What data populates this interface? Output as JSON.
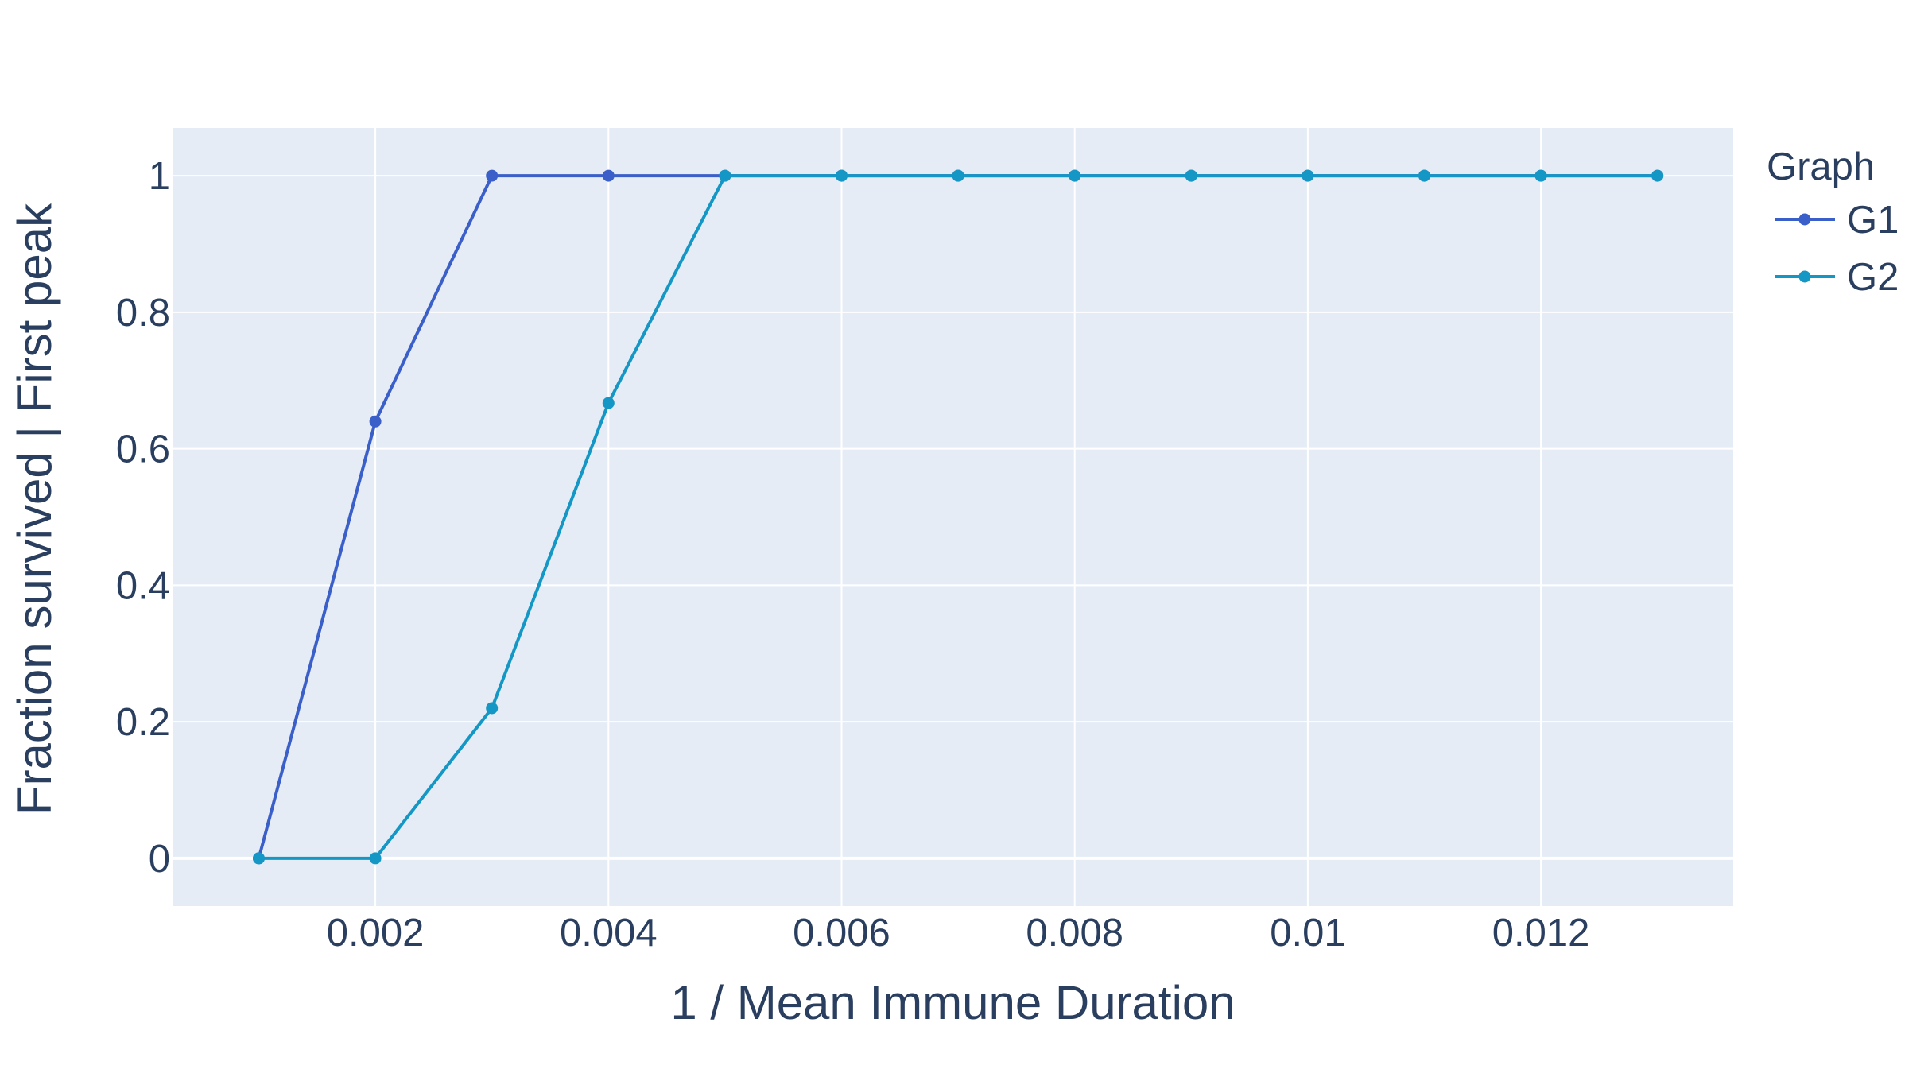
{
  "chart_data": {
    "type": "line",
    "xlabel": "1 / Mean Immune Duration",
    "ylabel": "Fraction survived  | First peak",
    "xlim": [
      0.00026,
      0.01365
    ],
    "ylim": [
      -0.07,
      1.07
    ],
    "x_ticks": [
      0.002,
      0.004,
      0.006,
      0.008,
      0.01,
      0.012
    ],
    "x_tick_labels": [
      "0.002",
      "0.004",
      "0.006",
      "0.008",
      "0.01",
      "0.012"
    ],
    "y_ticks": [
      0,
      0.2,
      0.4,
      0.6,
      0.8,
      1
    ],
    "y_tick_labels": [
      "0",
      "0.2",
      "0.4",
      "0.6",
      "0.8",
      "1"
    ],
    "grid": true,
    "plot_background": "#E5ECF6",
    "grid_color": "#ffffff",
    "legend": {
      "title": "Graph",
      "placement": "right"
    },
    "series": [
      {
        "name": "G1",
        "color": "#3B5FC8",
        "x": [
          0.001,
          0.002,
          0.003,
          0.004,
          0.005,
          0.006,
          0.007,
          0.008,
          0.009,
          0.01,
          0.011,
          0.012,
          0.013
        ],
        "values": [
          0,
          0.64,
          1,
          1,
          1,
          1,
          1,
          1,
          1,
          1,
          1,
          1,
          1
        ]
      },
      {
        "name": "G2",
        "color": "#1497C4",
        "x": [
          0.001,
          0.002,
          0.003,
          0.004,
          0.005,
          0.006,
          0.007,
          0.008,
          0.009,
          0.01,
          0.011,
          0.012,
          0.013
        ],
        "values": [
          0,
          0,
          0.22,
          0.667,
          1,
          1,
          1,
          1,
          1,
          1,
          1,
          1,
          1
        ]
      }
    ]
  }
}
